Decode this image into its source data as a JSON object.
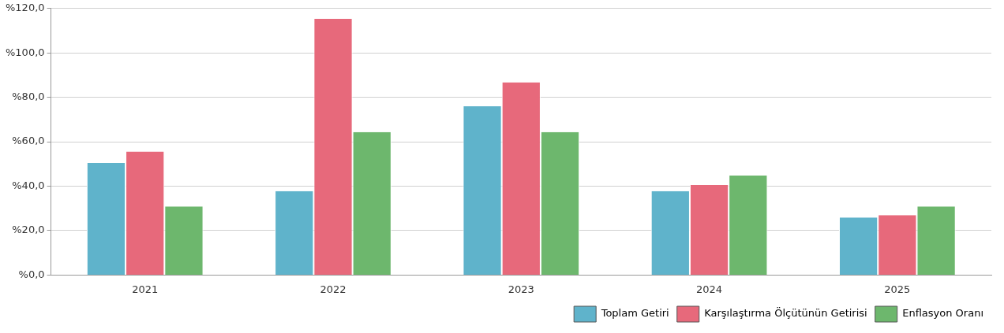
{
  "chart_data": {
    "type": "bar",
    "categories": [
      "2021",
      "2022",
      "2023",
      "2024",
      "2025"
    ],
    "series": [
      {
        "name": "Toplam Getiri",
        "color": "#5fb3cb",
        "values": [
          50.5,
          37.8,
          76.0,
          37.8,
          25.9
        ]
      },
      {
        "name": "Karşılaştırma Ölçütünün Getirisi",
        "color": "#e7697b",
        "values": [
          55.6,
          115.4,
          86.8,
          40.5,
          27.0
        ]
      },
      {
        "name": "Enflasyon Oranı",
        "color": "#6db76d",
        "values": [
          30.9,
          64.4,
          64.4,
          44.8,
          30.9
        ]
      }
    ],
    "ylim": [
      0,
      120
    ],
    "yticks": [
      {
        "value": 0,
        "label": "%0,0"
      },
      {
        "value": 20,
        "label": "%20,0"
      },
      {
        "value": 40,
        "label": "%40,0"
      },
      {
        "value": 60,
        "label": "%60,0"
      },
      {
        "value": 80,
        "label": "%80,0"
      },
      {
        "value": 100,
        "label": "%100,0"
      },
      {
        "value": 120,
        "label": "%120,0"
      }
    ],
    "grid": "y",
    "legend": "bottom right"
  }
}
